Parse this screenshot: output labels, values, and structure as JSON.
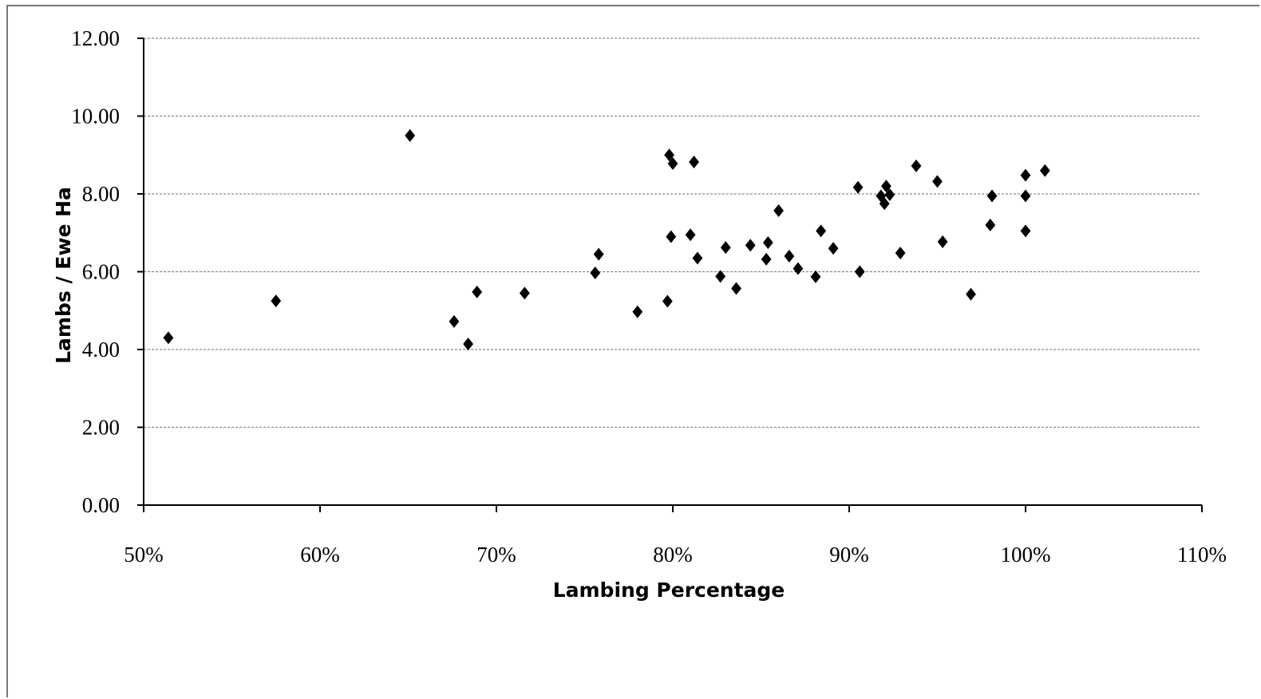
{
  "chart_data": {
    "type": "scatter",
    "title": "",
    "xlabel": "Lambing Percentage",
    "ylabel": "Lambs / Ewe Ha",
    "xlim": [
      0.5,
      1.1
    ],
    "ylim": [
      0,
      12
    ],
    "x_ticks": [
      0.5,
      0.6,
      0.7,
      0.8,
      0.9,
      1.0,
      1.1
    ],
    "x_tick_labels": [
      "50%",
      "60%",
      "70%",
      "80%",
      "90%",
      "100%",
      "110%"
    ],
    "y_ticks": [
      0,
      2,
      4,
      6,
      8,
      10,
      12
    ],
    "y_tick_labels": [
      "0.00",
      "2.00",
      "4.00",
      "6.00",
      "8.00",
      "10.00",
      "12.00"
    ],
    "grid": "horizontal dashed",
    "legend": "none",
    "marker": "diamond",
    "colors": {
      "marker": "#000000",
      "grid": "#888888",
      "axis": "#000000",
      "frame": "#777777"
    },
    "series": [
      {
        "points": [
          [
            0.514,
            4.3
          ],
          [
            0.575,
            5.25
          ],
          [
            0.651,
            9.5
          ],
          [
            0.676,
            4.72
          ],
          [
            0.684,
            4.14
          ],
          [
            0.689,
            5.48
          ],
          [
            0.716,
            5.45
          ],
          [
            0.756,
            5.97
          ],
          [
            0.758,
            6.45
          ],
          [
            0.78,
            4.97
          ],
          [
            0.797,
            5.24
          ],
          [
            0.798,
            9.0
          ],
          [
            0.799,
            6.9
          ],
          [
            0.8,
            8.78
          ],
          [
            0.81,
            6.95
          ],
          [
            0.812,
            8.82
          ],
          [
            0.814,
            6.35
          ],
          [
            0.827,
            5.88
          ],
          [
            0.83,
            6.62
          ],
          [
            0.836,
            5.57
          ],
          [
            0.844,
            6.68
          ],
          [
            0.853,
            6.32
          ],
          [
            0.854,
            6.75
          ],
          [
            0.86,
            7.57
          ],
          [
            0.866,
            6.4
          ],
          [
            0.871,
            6.08
          ],
          [
            0.881,
            5.87
          ],
          [
            0.884,
            7.05
          ],
          [
            0.891,
            6.6
          ],
          [
            0.905,
            8.17
          ],
          [
            0.906,
            6.0
          ],
          [
            0.918,
            7.95
          ],
          [
            0.92,
            7.75
          ],
          [
            0.921,
            8.2
          ],
          [
            0.923,
            7.98
          ],
          [
            0.929,
            6.48
          ],
          [
            0.938,
            8.72
          ],
          [
            0.95,
            8.32
          ],
          [
            0.953,
            6.77
          ],
          [
            0.969,
            5.42
          ],
          [
            0.98,
            7.2
          ],
          [
            0.981,
            7.95
          ],
          [
            1.0,
            7.05
          ],
          [
            1.0,
            7.95
          ],
          [
            1.0,
            8.48
          ],
          [
            1.011,
            8.6
          ]
        ]
      }
    ]
  }
}
